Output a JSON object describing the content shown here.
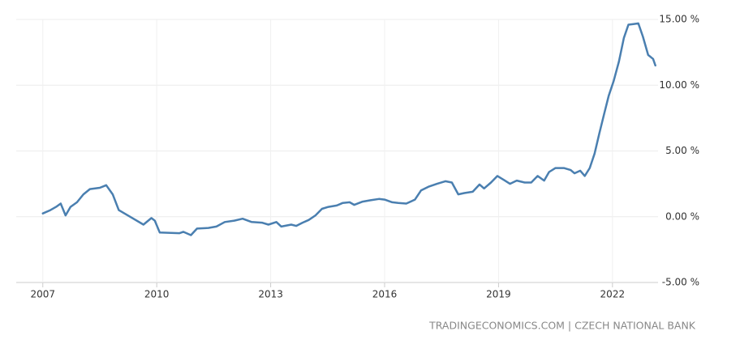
{
  "chart_data": {
    "type": "line",
    "source": "TRADINGECONOMICS.COM | CZECH NATIONAL BANK",
    "x": [
      2007.0,
      2007.2,
      2007.35,
      2007.47,
      2007.6,
      2007.73,
      2007.9,
      2008.07,
      2008.24,
      2008.5,
      2008.67,
      2008.84,
      2009.0,
      2009.3,
      2009.65,
      2009.86,
      2009.95,
      2010.08,
      2010.6,
      2010.7,
      2010.9,
      2011.06,
      2011.36,
      2011.57,
      2011.79,
      2012.04,
      2012.26,
      2012.5,
      2012.77,
      2012.94,
      2013.15,
      2013.28,
      2013.54,
      2013.67,
      2013.84,
      2014.0,
      2014.18,
      2014.35,
      2014.52,
      2014.74,
      2014.9,
      2015.08,
      2015.2,
      2015.42,
      2015.63,
      2015.85,
      2016.0,
      2016.2,
      2016.36,
      2016.57,
      2016.8,
      2016.96,
      2017.17,
      2017.38,
      2017.6,
      2017.77,
      2017.94,
      2018.1,
      2018.32,
      2018.5,
      2018.62,
      2018.8,
      2018.97,
      2019.14,
      2019.3,
      2019.48,
      2019.69,
      2019.86,
      2020.03,
      2020.2,
      2020.33,
      2020.5,
      2020.72,
      2020.9,
      2021.0,
      2021.15,
      2021.27,
      2021.4,
      2021.53,
      2021.65,
      2021.78,
      2021.9,
      2022.03,
      2022.17,
      2022.3,
      2022.42,
      2022.55,
      2022.68,
      2022.8,
      2022.94,
      2023.07,
      2023.13
    ],
    "series": [
      {
        "color": "#4a7fb0",
        "values": [
          0.25,
          0.5,
          0.75,
          1.0,
          0.1,
          0.75,
          1.1,
          1.7,
          2.1,
          2.2,
          2.4,
          1.7,
          0.5,
          0.0,
          -0.6,
          -0.1,
          -0.3,
          -1.2,
          -1.25,
          -1.15,
          -1.4,
          -0.9,
          -0.85,
          -0.75,
          -0.4,
          -0.3,
          -0.15,
          -0.4,
          -0.45,
          -0.6,
          -0.4,
          -0.75,
          -0.6,
          -0.7,
          -0.45,
          -0.25,
          0.1,
          0.6,
          0.75,
          0.85,
          1.05,
          1.1,
          0.9,
          1.15,
          1.25,
          1.35,
          1.3,
          1.1,
          1.05,
          1.0,
          1.3,
          2.0,
          2.3,
          2.5,
          2.7,
          2.6,
          1.7,
          1.8,
          1.9,
          2.45,
          2.15,
          2.6,
          3.1,
          2.8,
          2.5,
          2.75,
          2.6,
          2.6,
          3.1,
          2.75,
          3.4,
          3.7,
          3.7,
          3.55,
          3.3,
          3.5,
          3.1,
          3.7,
          4.8,
          6.3,
          7.8,
          9.2,
          10.3,
          11.8,
          13.6,
          14.6,
          14.65,
          14.7,
          13.7,
          12.3,
          12.0,
          11.5
        ]
      }
    ],
    "xlim": [
      2006.3,
      2023.2
    ],
    "xticks": [
      2007,
      2010,
      2013,
      2016,
      2019,
      2022
    ],
    "ylim": [
      -5,
      15
    ],
    "yticks": [
      {
        "value": -5,
        "label": "-5.00 %"
      },
      {
        "value": 0,
        "label": "0.00 %"
      },
      {
        "value": 5,
        "label": "5.00 %"
      },
      {
        "value": 10,
        "label": "10.00 %"
      },
      {
        "value": 15,
        "label": "15.00 %"
      }
    ],
    "grid": true
  }
}
